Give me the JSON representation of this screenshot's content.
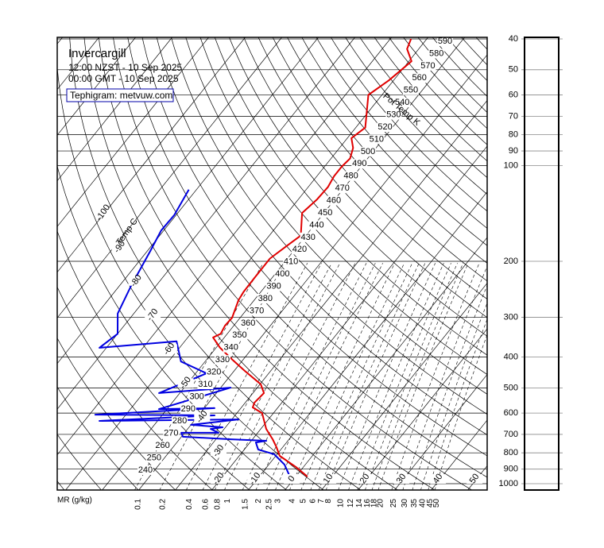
{
  "chart_data": {
    "type": "tephigram",
    "title": "Invercargill",
    "subtitle": [
      "12:00 NZST - 10 Sep 2025",
      "00:00 GMT - 10 Sep 2025"
    ],
    "credit": "Tephigram: metvuw.com",
    "isotherm_label": "Temp C",
    "isotherm_ticks": [
      -100,
      -90,
      -80,
      -70,
      -60,
      -50,
      -40,
      -30,
      -20,
      -10,
      0,
      10,
      20,
      30,
      40,
      50
    ],
    "theta_label": "Pot Temp K",
    "theta_ticks": [
      240,
      250,
      260,
      270,
      280,
      290,
      300,
      310,
      320,
      330,
      340,
      350,
      360,
      370,
      380,
      390,
      400,
      410,
      420,
      430,
      440,
      450,
      460,
      470,
      480,
      490,
      500,
      510,
      520,
      530,
      540,
      550,
      560,
      570,
      580,
      590
    ],
    "mr_label": "MR (g/kg)",
    "mr_ticks": [
      0.1,
      0.2,
      0.4,
      0.6,
      0.8,
      1.0,
      1.5,
      2.0,
      2.5,
      3,
      4,
      5,
      6,
      7,
      8,
      10,
      12,
      14,
      16,
      18,
      20,
      25,
      30,
      35,
      40,
      45,
      50
    ],
    "ylim": [
      1000,
      40
    ],
    "log_scale": true,
    "yticks": [
      40,
      50,
      60,
      70,
      80,
      90,
      100,
      200,
      300,
      400,
      500,
      600,
      700,
      800,
      900,
      1000
    ],
    "series": [
      {
        "color": "#e00000",
        "pressure": [
          950,
          886,
          818,
          768,
          725,
          673,
          600,
          576,
          556,
          519,
          487,
          442,
          406,
          374,
          347,
          338,
          319,
          301,
          265,
          250,
          226,
          196,
          180,
          166,
          141,
          128,
          117,
          108,
          101,
          95,
          88,
          82,
          76,
          60,
          54,
          47,
          43,
          40
        ],
        "values": [
          3.2,
          -2.1,
          -8.9,
          -11.7,
          -14.5,
          -18.5,
          -23.1,
          -26.9,
          -27.5,
          -27.0,
          -29.8,
          -37.1,
          -43.2,
          -48.9,
          -53.1,
          -51.8,
          -52.4,
          -52.2,
          -54.3,
          -54.7,
          -54.8,
          -54.8,
          -53.1,
          -51.4,
          -56.0,
          -54.9,
          -54.6,
          -55.3,
          -55.3,
          -54.8,
          -56.3,
          -58.9,
          -57.4,
          -63.7,
          -61.3,
          -59.3,
          -63.2,
          -64.3
        ]
      },
      {
        "color": "#0000e0",
        "pressure": [
          950,
          871,
          808,
          781,
          742,
          733,
          725,
          712,
          692,
          692,
          673,
          665,
          653,
          628,
          635,
          610,
          607,
          579,
          583,
          499,
          519,
          450,
          413,
          357,
          374,
          338,
          292,
          239,
          185,
          160,
          143,
          119
        ],
        "values": [
          -1.6,
          -5.7,
          -10.8,
          -16.2,
          -18.4,
          -15.9,
          -26.0,
          -39.6,
          -40.9,
          -30.7,
          -33.7,
          -30.8,
          -40.0,
          -28.2,
          -65.9,
          -35.6,
          -68.4,
          -37.2,
          -52.2,
          -37.3,
          -55.7,
          -47.0,
          -56.6,
          -62.2,
          -81.9,
          -80.0,
          -84.4,
          -86.8,
          -89.2,
          -90.7,
          -90.5,
          -92.1
        ]
      }
    ]
  }
}
